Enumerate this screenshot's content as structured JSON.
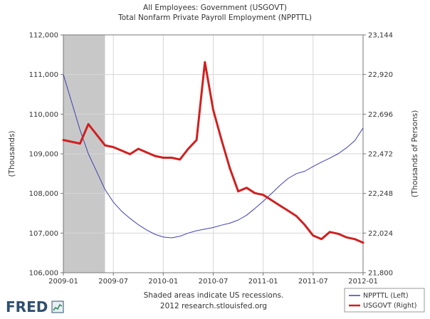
{
  "chart_data": {
    "type": "line",
    "title": [
      "All Employees: Government (USGOVT)",
      "Total Nonfarm Private Payroll Employment (NPPTTL)"
    ],
    "left_axis": {
      "label": "(Thousands)",
      "min": 106000,
      "max": 112000,
      "ticks": [
        "106,000",
        "107,000",
        "108,000",
        "109,000",
        "110,000",
        "111,000",
        "112,000"
      ],
      "tick_values": [
        106000,
        107000,
        108000,
        109000,
        110000,
        111000,
        112000
      ]
    },
    "right_axis": {
      "label": "(Thousands of Persons)",
      "min": 21800,
      "max": 23144,
      "ticks": [
        "21,800",
        "22,024",
        "22,248",
        "22,472",
        "22,696",
        "22,920",
        "23,144"
      ],
      "tick_values": [
        21800,
        22024,
        22248,
        22472,
        22696,
        22920,
        23144
      ]
    },
    "x_axis": {
      "start": "2009-01",
      "end": "2012-01",
      "ticks": [
        "2009-01",
        "2009-07",
        "2010-01",
        "2010-07",
        "2011-01",
        "2011-07",
        "2012-01"
      ]
    },
    "recession": {
      "start": "2009-01",
      "end": "2009-06",
      "color": "#c8c8c8"
    },
    "grid": true,
    "series": [
      {
        "name": "NPPTTL (Left)",
        "axis": "left",
        "color": "#3f3fb0",
        "points": [
          [
            "2009-01",
            111000
          ],
          [
            "2009-02",
            110300
          ],
          [
            "2009-03",
            109600
          ],
          [
            "2009-04",
            109000
          ],
          [
            "2009-05",
            108550
          ],
          [
            "2009-06",
            108100
          ],
          [
            "2009-07",
            107780
          ],
          [
            "2009-08",
            107550
          ],
          [
            "2009-09",
            107370
          ],
          [
            "2009-10",
            107210
          ],
          [
            "2009-11",
            107080
          ],
          [
            "2009-12",
            106970
          ],
          [
            "2010-01",
            106900
          ],
          [
            "2010-02",
            106880
          ],
          [
            "2010-03",
            106920
          ],
          [
            "2010-04",
            107000
          ],
          [
            "2010-05",
            107060
          ],
          [
            "2010-06",
            107100
          ],
          [
            "2010-07",
            107140
          ],
          [
            "2010-08",
            107200
          ],
          [
            "2010-09",
            107250
          ],
          [
            "2010-10",
            107330
          ],
          [
            "2010-11",
            107450
          ],
          [
            "2010-12",
            107620
          ],
          [
            "2011-01",
            107800
          ],
          [
            "2011-02",
            108000
          ],
          [
            "2011-03",
            108200
          ],
          [
            "2011-04",
            108380
          ],
          [
            "2011-05",
            108500
          ],
          [
            "2011-06",
            108560
          ],
          [
            "2011-07",
            108680
          ],
          [
            "2011-08",
            108790
          ],
          [
            "2011-09",
            108890
          ],
          [
            "2011-10",
            109000
          ],
          [
            "2011-11",
            109150
          ],
          [
            "2011-12",
            109330
          ],
          [
            "2012-01",
            109650
          ]
        ]
      },
      {
        "name": "USGOVT (Right)",
        "axis": "right",
        "color": "#d02020",
        "points": [
          [
            "2009-01",
            22550
          ],
          [
            "2009-02",
            22540
          ],
          [
            "2009-03",
            22530
          ],
          [
            "2009-04",
            22640
          ],
          [
            "2009-05",
            22580
          ],
          [
            "2009-06",
            22520
          ],
          [
            "2009-07",
            22510
          ],
          [
            "2009-08",
            22490
          ],
          [
            "2009-09",
            22470
          ],
          [
            "2009-10",
            22500
          ],
          [
            "2009-11",
            22480
          ],
          [
            "2009-12",
            22460
          ],
          [
            "2010-01",
            22450
          ],
          [
            "2010-02",
            22450
          ],
          [
            "2010-03",
            22440
          ],
          [
            "2010-04",
            22500
          ],
          [
            "2010-05",
            22550
          ],
          [
            "2010-06",
            22990
          ],
          [
            "2010-07",
            22720
          ],
          [
            "2010-08",
            22550
          ],
          [
            "2010-09",
            22390
          ],
          [
            "2010-10",
            22260
          ],
          [
            "2010-11",
            22280
          ],
          [
            "2010-12",
            22250
          ],
          [
            "2011-01",
            22240
          ],
          [
            "2011-02",
            22210
          ],
          [
            "2011-03",
            22180
          ],
          [
            "2011-04",
            22150
          ],
          [
            "2011-05",
            22120
          ],
          [
            "2011-06",
            22070
          ],
          [
            "2011-07",
            22010
          ],
          [
            "2011-08",
            21990
          ],
          [
            "2011-09",
            22030
          ],
          [
            "2011-10",
            22020
          ],
          [
            "2011-11",
            22000
          ],
          [
            "2011-12",
            21990
          ],
          [
            "2012-01",
            21970
          ]
        ]
      }
    ],
    "legend": {
      "placement": "bottom-right",
      "entries": [
        "NPPTTL (Left)",
        "USGOVT (Right)"
      ]
    },
    "notes": [
      "Shaded areas indicate US recessions.",
      "2012 research.stlouisfed.org"
    ]
  },
  "branding": {
    "logo_text": "FRED"
  }
}
